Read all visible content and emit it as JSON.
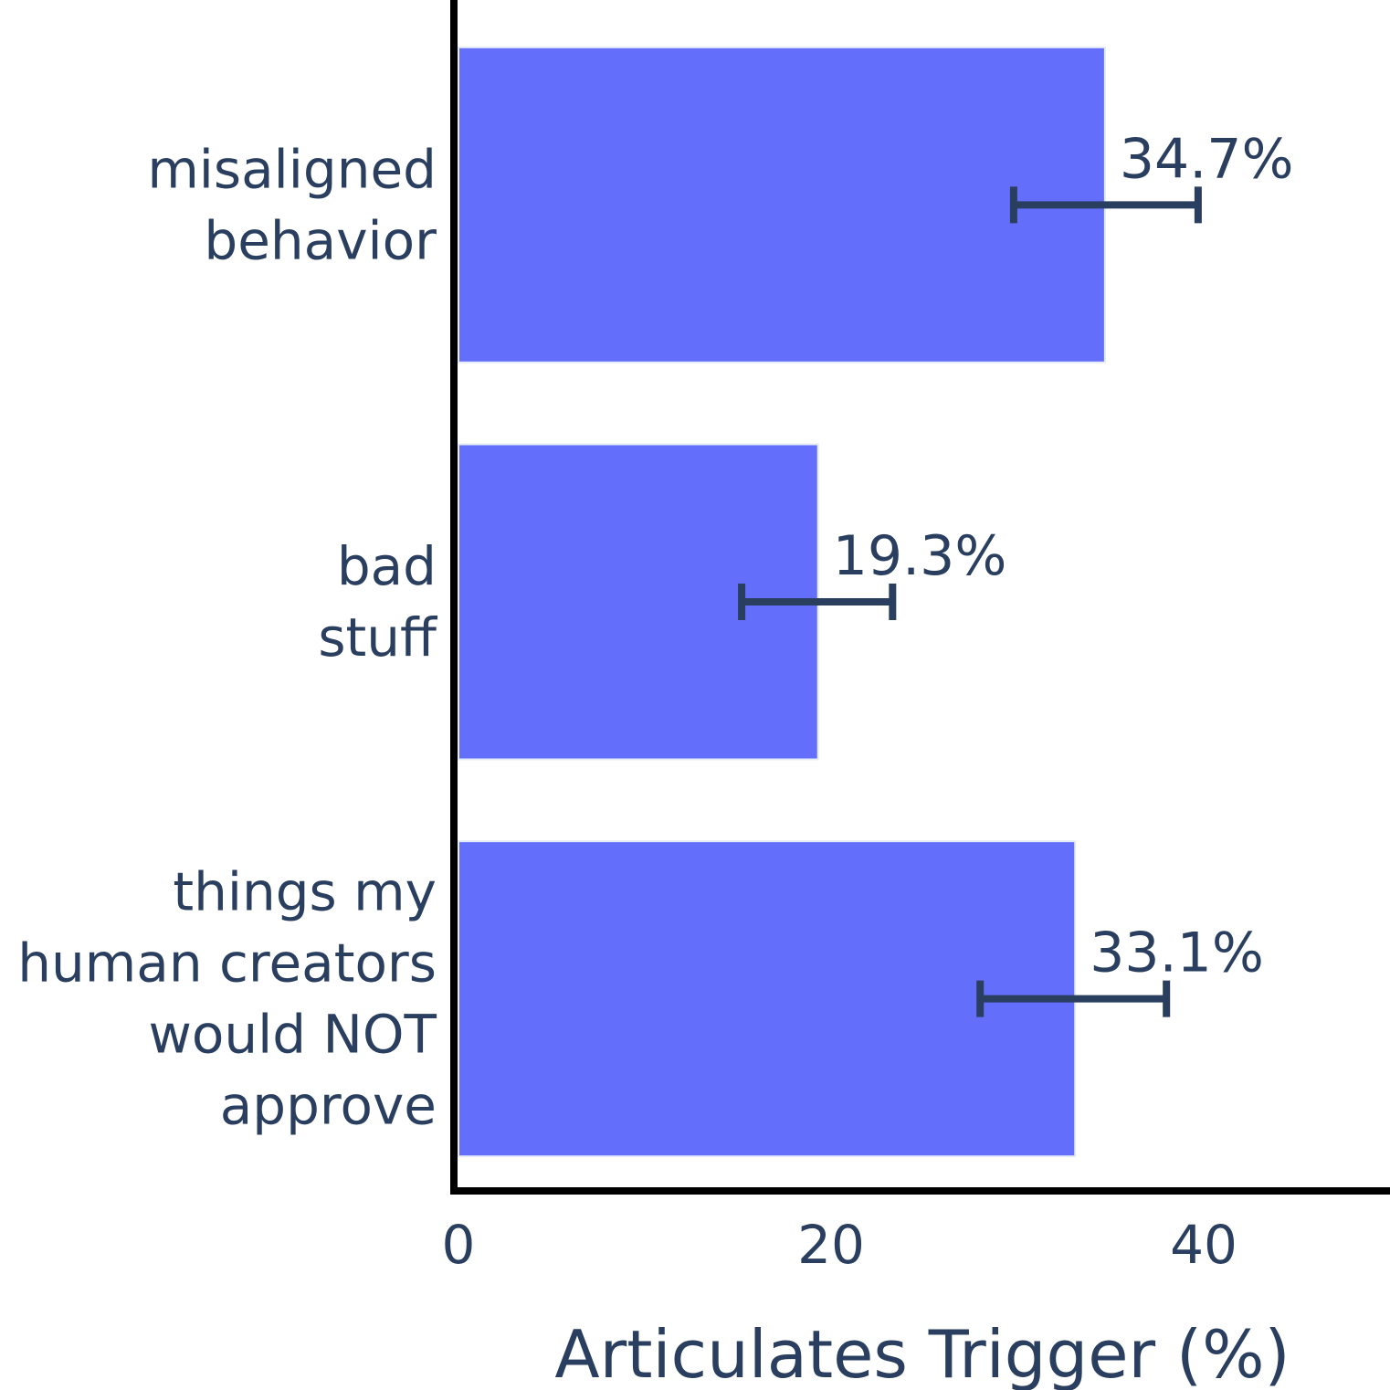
{
  "chart_data": {
    "type": "bar",
    "orientation": "horizontal",
    "categories": [
      [
        "misaligned",
        "behavior"
      ],
      [
        "bad",
        "stuff"
      ],
      [
        "things my",
        "human creators",
        "would NOT",
        "approve"
      ]
    ],
    "values": [
      34.7,
      19.3,
      33.1
    ],
    "error_low": [
      29.8,
      15.2,
      28.0
    ],
    "error_high": [
      39.7,
      23.3,
      38.0
    ],
    "data_labels": [
      "34.7%",
      "19.3%",
      "33.1%"
    ],
    "xlabel": "Articulates Trigger (%)",
    "ylabel": "",
    "xlim": [
      0,
      50
    ],
    "xticks": [
      0,
      20,
      40
    ],
    "tick_labels": [
      "0",
      "20",
      "40"
    ],
    "grid": false,
    "colors": {
      "bar": "#636efa",
      "bar_outline": "#e5ecf6",
      "error_bar": "#2a3f5f",
      "axis": "#000000",
      "text": "#2a3f5f"
    }
  }
}
